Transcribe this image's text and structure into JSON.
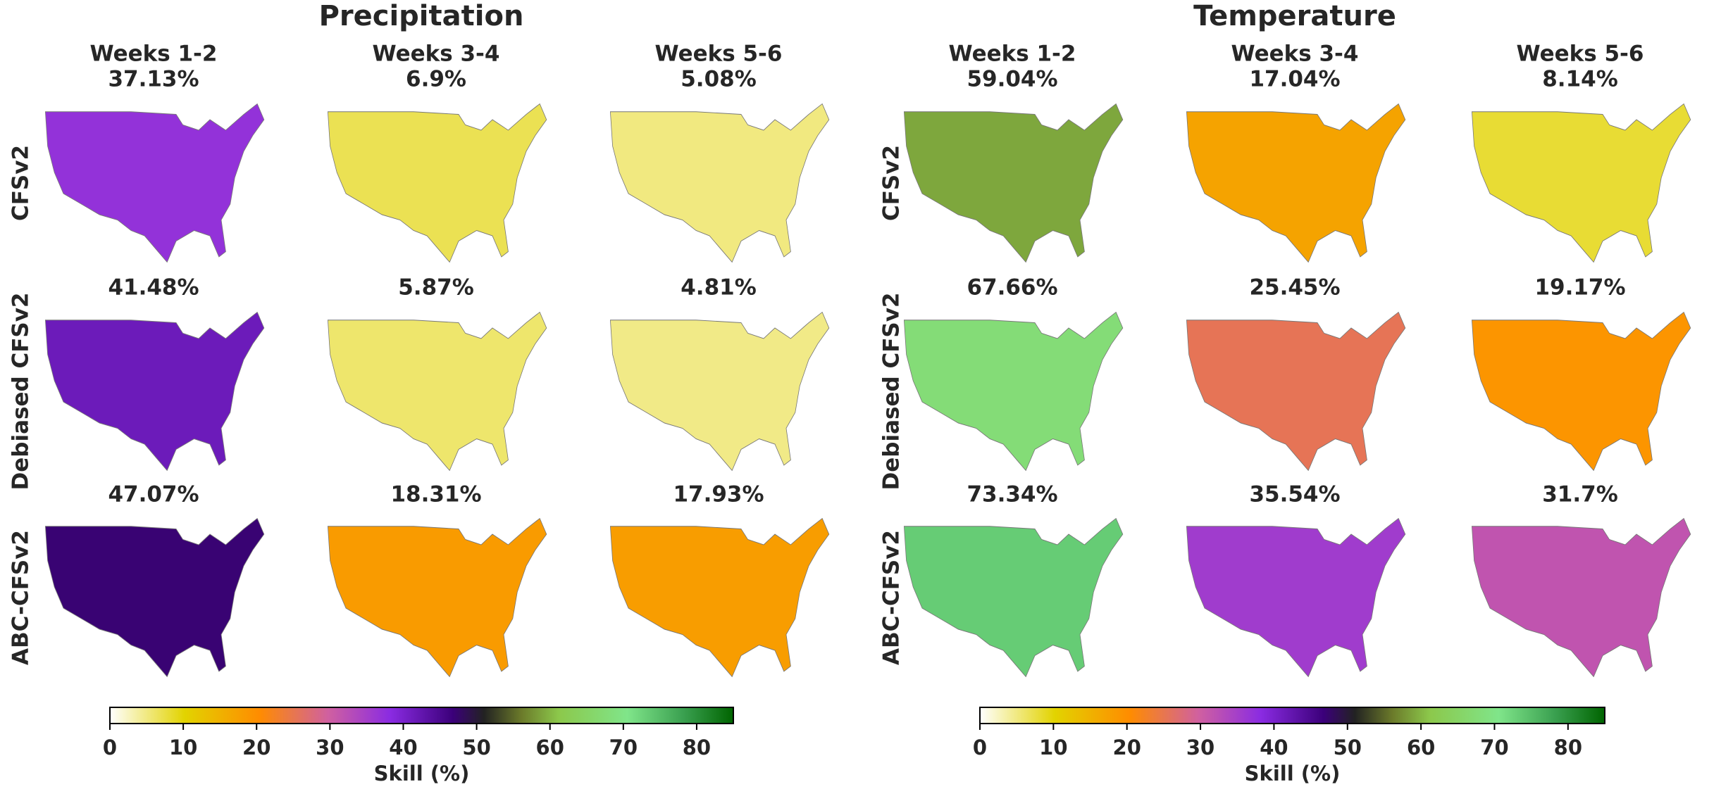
{
  "figures": [
    {
      "title": "Precipitation",
      "columns": [
        "Weeks 1-2",
        "Weeks 3-4",
        "Weeks 5-6"
      ],
      "rows": [
        {
          "label": "CFSv2",
          "values": [
            37.13,
            6.9,
            5.08
          ],
          "value_labels": [
            "37.13%",
            "6.9%",
            "5.08%"
          ]
        },
        {
          "label": "Debiased CFSv2",
          "values": [
            41.48,
            5.87,
            4.81
          ],
          "value_labels": [
            "41.48%",
            "5.87%",
            "4.81%"
          ]
        },
        {
          "label": "ABC-CFSv2",
          "values": [
            47.07,
            18.31,
            17.93
          ],
          "value_labels": [
            "47.07%",
            "18.31%",
            "17.93%"
          ]
        }
      ],
      "colorbar": {
        "label": "Skill (%)",
        "lim": [
          0,
          85
        ],
        "ticks": [
          0,
          10,
          20,
          30,
          40,
          50,
          60,
          70,
          80
        ]
      }
    },
    {
      "title": "Temperature",
      "columns": [
        "Weeks 1-2",
        "Weeks 3-4",
        "Weeks 5-6"
      ],
      "rows": [
        {
          "label": "CFSv2",
          "values": [
            59.04,
            17.04,
            8.14
          ],
          "value_labels": [
            "59.04%",
            "17.04%",
            "8.14%"
          ]
        },
        {
          "label": "Debiased CFSv2",
          "values": [
            67.66,
            25.45,
            19.17
          ],
          "value_labels": [
            "67.66%",
            "25.45%",
            "19.17%"
          ]
        },
        {
          "label": "ABC-CFSv2",
          "values": [
            73.34,
            35.54,
            31.7
          ],
          "value_labels": [
            "73.34%",
            "35.54%",
            "31.7%"
          ]
        }
      ],
      "colorbar": {
        "label": "Skill (%)",
        "lim": [
          0,
          85
        ],
        "ticks": [
          0,
          10,
          20,
          30,
          40,
          50,
          60,
          70,
          80
        ]
      }
    }
  ]
}
